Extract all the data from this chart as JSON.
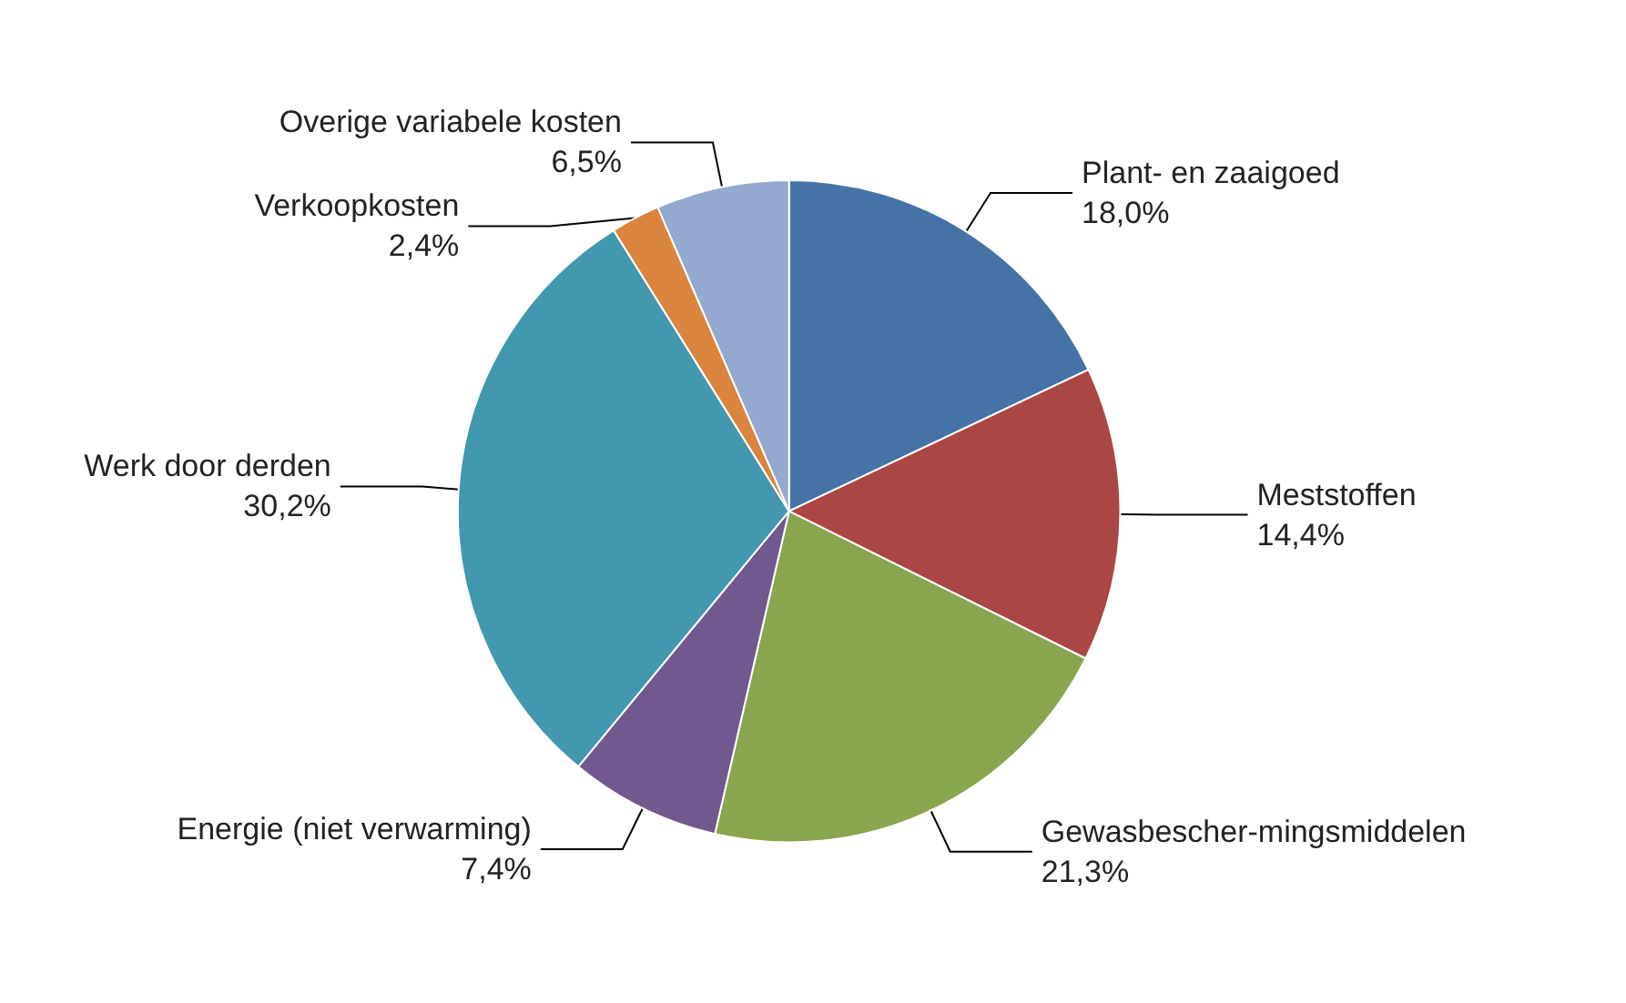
{
  "chart_data": {
    "type": "pie",
    "categories": [
      "Plant- en zaaigoed",
      "Meststoffen",
      "Gewasbescher-mingsmiddelen",
      "Energie (niet verwarming)",
      "Werk door derden",
      "Verkoopkosten",
      "Overige variabele kosten"
    ],
    "values": [
      18.0,
      14.4,
      21.3,
      7.4,
      30.2,
      2.4,
      6.5
    ],
    "value_labels": [
      "18,0%",
      "14,4%",
      "21,3%",
      "7,4%",
      "30,2%",
      "2,4%",
      "6,5%"
    ],
    "colors": [
      "#4572a7",
      "#aa4643",
      "#89a54e",
      "#71588f",
      "#4198af",
      "#db843d",
      "#93a9cf"
    ],
    "legend": false
  }
}
